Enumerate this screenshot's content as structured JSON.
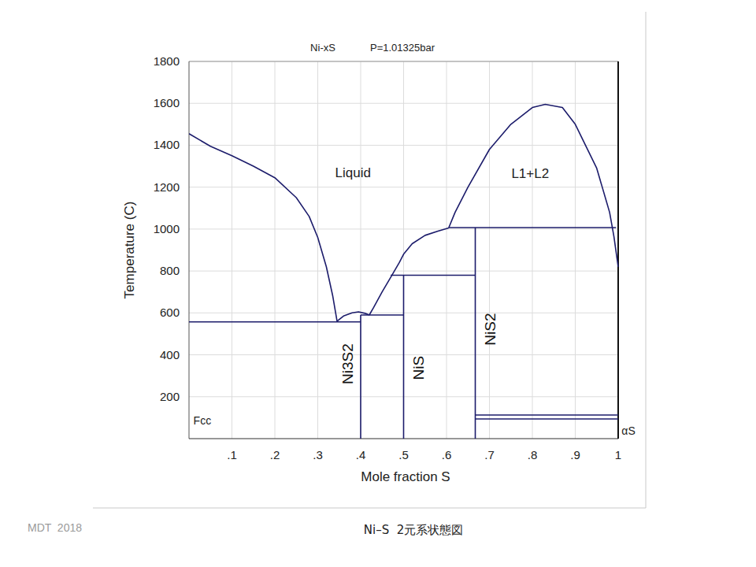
{
  "chart_data": {
    "type": "line",
    "title": "Ni-xS",
    "subtitle": "P=1.01325bar",
    "x_label": "Mole fraction S",
    "y_label": "Temperature (C)",
    "color": "#1c1c6b",
    "grid": true,
    "xlim": [
      0,
      1
    ],
    "ylim": [
      0,
      1800
    ],
    "xticks": [
      {
        "value": 0.1,
        "label": ".1"
      },
      {
        "value": 0.2,
        "label": ".2"
      },
      {
        "value": 0.3,
        "label": ".3"
      },
      {
        "value": 0.4,
        "label": ".4"
      },
      {
        "value": 0.5,
        "label": ".5"
      },
      {
        "value": 0.6,
        "label": ".6"
      },
      {
        "value": 0.7,
        "label": ".7"
      },
      {
        "value": 0.8,
        "label": ".8"
      },
      {
        "value": 0.9,
        "label": ".9"
      },
      1
    ],
    "yticks": [
      200,
      400,
      600,
      800,
      1000,
      1200,
      1400,
      1600,
      1800
    ],
    "series": [
      {
        "x": [
          0,
          0.05,
          0.1,
          0.15,
          0.2,
          0.25,
          0.28,
          0.3,
          0.32,
          0.335,
          0.345
        ],
        "values": [
          1455,
          1395,
          1350,
          1300,
          1245,
          1150,
          1060,
          960,
          820,
          680,
          560
        ]
      },
      {
        "x": [
          0.345,
          0.36,
          0.38,
          0.395,
          0.41,
          0.42
        ],
        "values": [
          560,
          585,
          600,
          605,
          598,
          590
        ]
      },
      {
        "x": [
          0.42,
          0.43,
          0.45,
          0.47,
          0.49,
          0.5,
          0.52,
          0.55,
          0.58,
          0.605
        ],
        "values": [
          590,
          625,
          700,
          770,
          840,
          880,
          930,
          970,
          990,
          1005
        ]
      },
      {
        "x": [
          0.605,
          0.62,
          0.65,
          0.7,
          0.75,
          0.8,
          0.83,
          0.87,
          0.9,
          0.95,
          0.98,
          0.99,
          1
        ],
        "values": [
          1005,
          1080,
          1200,
          1380,
          1500,
          1580,
          1595,
          1580,
          1500,
          1290,
          1080,
          965,
          820
        ]
      },
      {
        "x": [
          0,
          0.4
        ],
        "values": [
          557,
          557
        ]
      },
      {
        "x": [
          0.4,
          0.4
        ],
        "values": [
          0,
          590
        ]
      },
      {
        "x": [
          0.4,
          0.5
        ],
        "values": [
          590,
          590
        ]
      },
      {
        "x": [
          0.5,
          0.5
        ],
        "values": [
          0,
          780
        ]
      },
      {
        "x": [
          0.47,
          0.667
        ],
        "values": [
          780,
          780
        ]
      },
      {
        "x": [
          0.667,
          0.667
        ],
        "values": [
          0,
          1007
        ]
      },
      {
        "x": [
          0.605,
          0.995
        ],
        "values": [
          1007,
          1007
        ]
      },
      {
        "x": [
          0.667,
          1
        ],
        "values": [
          113,
          113
        ]
      },
      {
        "x": [
          0.667,
          1
        ],
        "values": [
          94,
          94
        ]
      }
    ],
    "annotations": [
      {
        "text": "Liquid",
        "x": 0.382,
        "y": 1270
      },
      {
        "text": "L1+L2",
        "x": 0.795,
        "y": 1265
      },
      {
        "text": "Fcc",
        "x": 0.031,
        "y": 90
      },
      {
        "text": "αS",
        "x": 1.024,
        "y": 42
      }
    ],
    "compound_labels": [
      {
        "text": "Ni3S2",
        "x": 0.369,
        "y": 357
      },
      {
        "text": "NiS",
        "x": 0.534,
        "y": 338
      },
      {
        "text": "NiS2",
        "x": 0.701,
        "y": 522
      }
    ],
    "footer": "MDT  2018",
    "caption": "Ni–S  2元系状態図"
  }
}
